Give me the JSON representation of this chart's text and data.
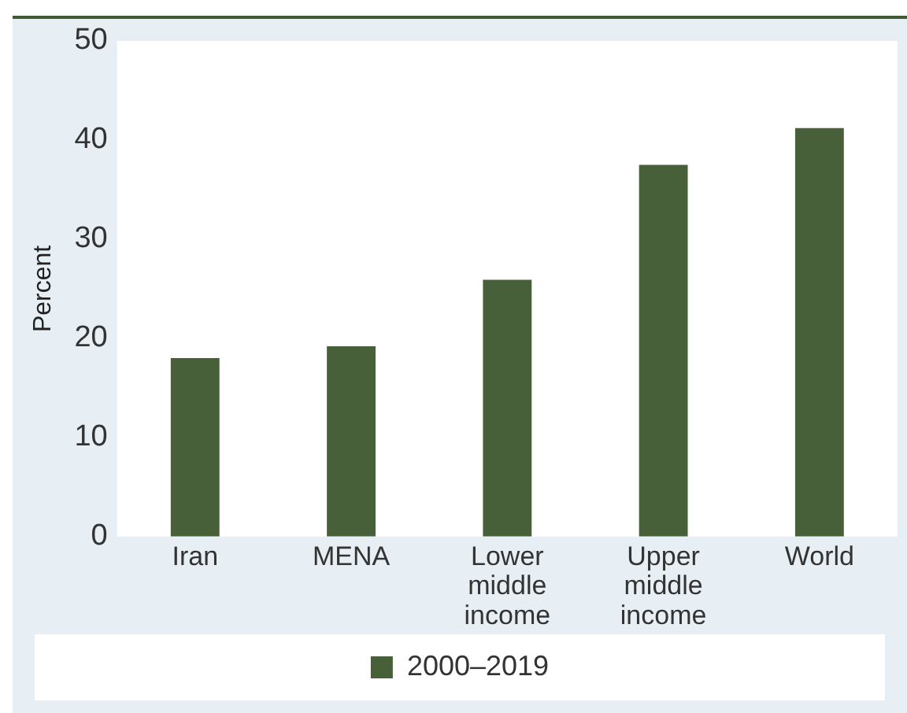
{
  "chart_data": {
    "type": "bar",
    "ylabel": "Percent",
    "categories": [
      "Iran",
      "MENA",
      "Lower middle income",
      "Upper middle income",
      "World"
    ],
    "series": [
      {
        "name": "2000–2019",
        "color": "#48603a",
        "values": [
          18.0,
          19.2,
          25.9,
          37.5,
          41.2
        ]
      }
    ],
    "ylim": [
      0,
      50
    ],
    "yticks": [
      0,
      10,
      20,
      30,
      40,
      50
    ],
    "grid": false,
    "legend": "bottom"
  }
}
